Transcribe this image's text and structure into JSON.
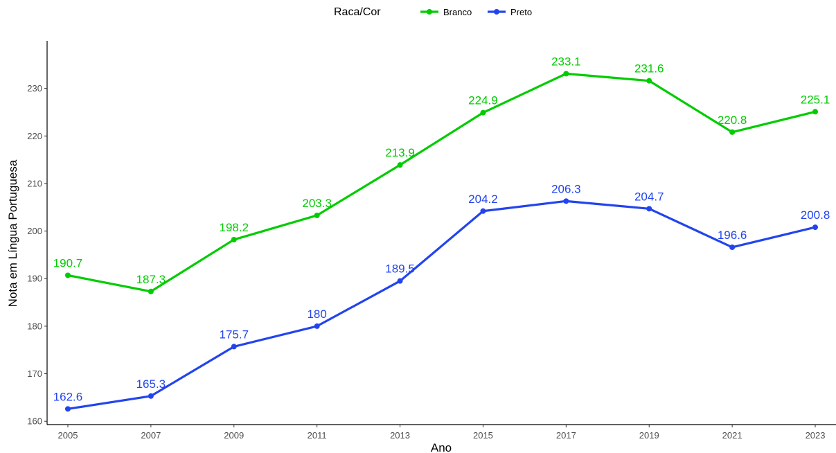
{
  "chart_data": {
    "type": "line",
    "xlabel": "Ano",
    "ylabel": "Nota em Língua Portuguesa",
    "x": [
      2005,
      2007,
      2009,
      2011,
      2013,
      2015,
      2017,
      2019,
      2021,
      2023
    ],
    "xlim": [
      2004.5,
      2023.5
    ],
    "ylim": [
      159.3,
      240
    ],
    "yticks": [
      160,
      170,
      180,
      190,
      200,
      210,
      220,
      230
    ],
    "grid": false,
    "legend": {
      "title": "Raca/Cor",
      "position": "top"
    },
    "series": [
      {
        "name": "Branco",
        "color": "#00cc00",
        "values": [
          190.7,
          187.3,
          198.2,
          203.3,
          213.9,
          224.9,
          233.1,
          231.6,
          220.8,
          225.1
        ],
        "labels": [
          "190.7",
          "187.3",
          "198.2",
          "203.3",
          "213.9",
          "224.9",
          "233.1",
          "231.6",
          "220.8",
          "225.1"
        ]
      },
      {
        "name": "Preto",
        "color": "#2244ee",
        "values": [
          162.6,
          165.3,
          175.7,
          180,
          189.5,
          204.2,
          206.3,
          204.7,
          196.6,
          200.8
        ],
        "labels": [
          "162.6",
          "165.3",
          "175.7",
          "180",
          "189.5",
          "204.2",
          "206.3",
          "204.7",
          "196.6",
          "200.8"
        ]
      }
    ]
  }
}
